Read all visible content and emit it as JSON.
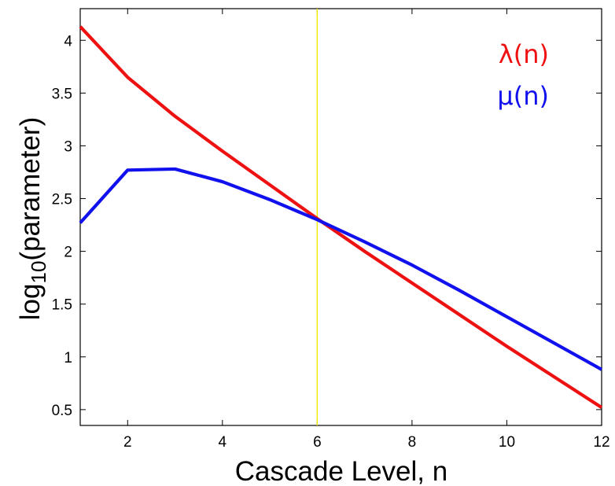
{
  "colors": {
    "lambda": "#ee1111",
    "mu": "#1111ee",
    "marker": "#f2ea00",
    "axis": "#000000"
  },
  "chart_data": {
    "type": "line",
    "title": "",
    "xlabel": "Cascade Level, n",
    "ylabel_main": "log",
    "ylabel_sub": "10",
    "ylabel_tail": "(parameter)",
    "xlim": [
      1,
      12
    ],
    "ylim": [
      0.35,
      4.3
    ],
    "xticks": [
      2,
      4,
      6,
      8,
      10,
      12
    ],
    "yticks": [
      0.5,
      1,
      1.5,
      2,
      2.5,
      3,
      3.5,
      4
    ],
    "grid": false,
    "legend_position": "top-right",
    "vertical_marker_x": 6,
    "series": [
      {
        "name": "λ(n)",
        "color": "#ee1111",
        "x": [
          1,
          2,
          3,
          4,
          5,
          6,
          7,
          8,
          9,
          10,
          11,
          12
        ],
        "y": [
          4.13,
          3.65,
          3.28,
          2.95,
          2.63,
          2.31,
          2.0,
          1.7,
          1.4,
          1.1,
          0.81,
          0.52
        ]
      },
      {
        "name": "μ(n)",
        "color": "#1111ee",
        "x": [
          1,
          2,
          3,
          4,
          5,
          6,
          7,
          8,
          9,
          10,
          11,
          12
        ],
        "y": [
          2.27,
          2.77,
          2.78,
          2.66,
          2.49,
          2.3,
          2.09,
          1.87,
          1.63,
          1.38,
          1.13,
          0.88
        ]
      }
    ]
  }
}
